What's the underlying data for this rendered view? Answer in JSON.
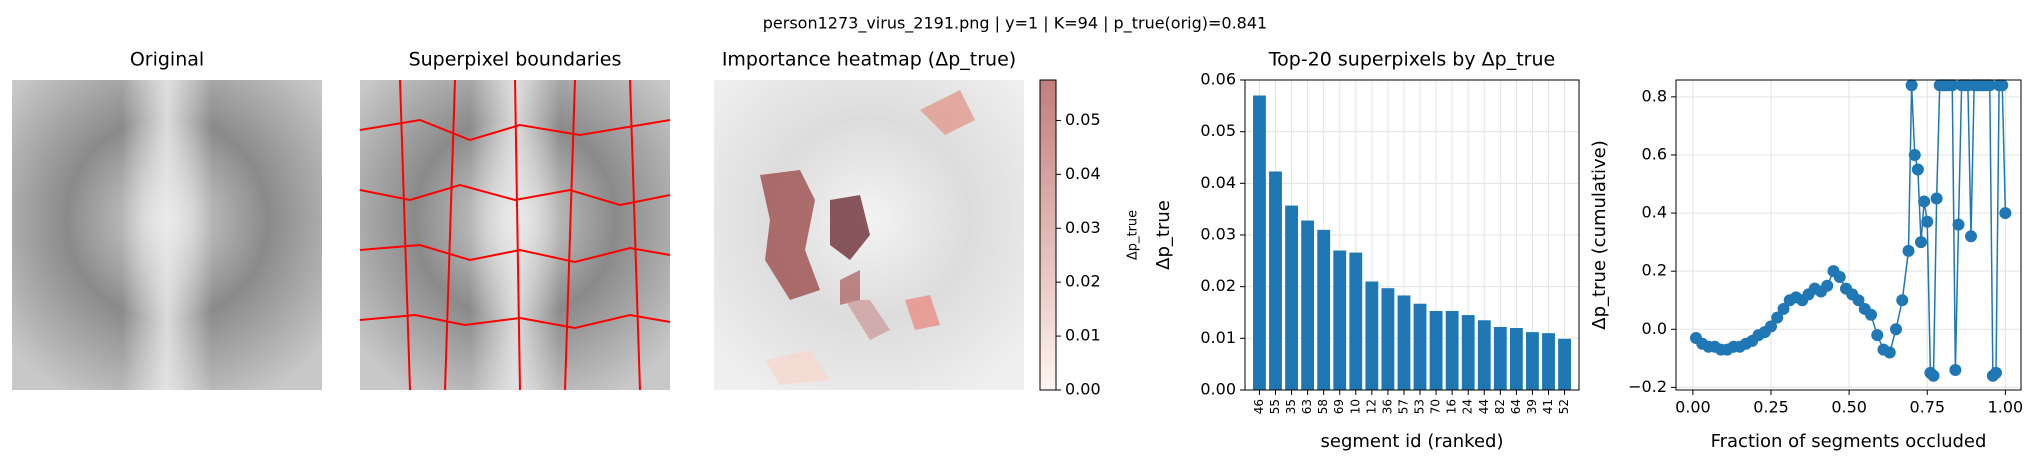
{
  "title": "person1273_virus_2191.png | y=1 | K=94 | p_true(orig)=0.841",
  "chart_data": [
    {
      "type": "image",
      "title": "Original"
    },
    {
      "type": "image",
      "title": "Superpixel boundaries"
    },
    {
      "type": "heatmap",
      "title": "Importance heatmap (Δp_true)",
      "colorbar_label": "Δp_true",
      "cmap": [
        "#fff5f0",
        "#c27d7b"
      ],
      "clim": [
        0,
        0.0575
      ],
      "cticks": [
        {
          "value": 0,
          "label": "0.00"
        },
        {
          "value": 0.01,
          "label": "0.01"
        },
        {
          "value": 0.02,
          "label": "0.02"
        },
        {
          "value": 0.03,
          "label": "0.03"
        },
        {
          "value": 0.04,
          "label": "0.04"
        },
        {
          "value": 0.05,
          "label": "0.05"
        }
      ]
    },
    {
      "type": "bar",
      "title": "Top-20 superpixels by Δp_true",
      "xlabel": "segment id (ranked)",
      "ylabel": "Δp_true",
      "color": "#1f77b4",
      "grid": true,
      "categories": [
        "46",
        "55",
        "35",
        "63",
        "58",
        "69",
        "10",
        "12",
        "36",
        "57",
        "53",
        "70",
        "16",
        "24",
        "44",
        "82",
        "64",
        "39",
        "41",
        "52"
      ],
      "values": [
        0.057,
        0.0423,
        0.0357,
        0.0328,
        0.031,
        0.027,
        0.0266,
        0.021,
        0.0197,
        0.0183,
        0.0167,
        0.0153,
        0.0153,
        0.0145,
        0.0135,
        0.0122,
        0.012,
        0.0112,
        0.011,
        0.0099
      ],
      "ylim": [
        0,
        0.06
      ],
      "yticks": [
        {
          "value": 0,
          "label": "0.00"
        },
        {
          "value": 0.01,
          "label": "0.01"
        },
        {
          "value": 0.02,
          "label": "0.02"
        },
        {
          "value": 0.03,
          "label": "0.03"
        },
        {
          "value": 0.04,
          "label": "0.04"
        },
        {
          "value": 0.05,
          "label": "0.05"
        },
        {
          "value": 0.06,
          "label": "0.06"
        }
      ]
    },
    {
      "type": "line",
      "xlabel": "Fraction of segments occluded",
      "ylabel": "Δp_true (cumulative)",
      "color": "#1f77b4",
      "grid": true,
      "x": [
        0.01,
        0.03,
        0.05,
        0.07,
        0.09,
        0.11,
        0.13,
        0.15,
        0.17,
        0.19,
        0.21,
        0.23,
        0.25,
        0.27,
        0.29,
        0.31,
        0.33,
        0.35,
        0.37,
        0.39,
        0.41,
        0.43,
        0.45,
        0.47,
        0.49,
        0.51,
        0.53,
        0.55,
        0.57,
        0.59,
        0.61,
        0.63,
        0.65,
        0.67,
        0.69,
        0.7,
        0.71,
        0.72,
        0.73,
        0.74,
        0.75,
        0.76,
        0.77,
        0.78,
        0.79,
        0.8,
        0.81,
        0.82,
        0.83,
        0.84,
        0.85,
        0.86,
        0.87,
        0.88,
        0.89,
        0.9,
        0.91,
        0.92,
        0.93,
        0.94,
        0.95,
        0.96,
        0.97,
        0.98,
        0.99,
        1.0
      ],
      "values": [
        -0.03,
        -0.05,
        -0.06,
        -0.06,
        -0.07,
        -0.07,
        -0.06,
        -0.06,
        -0.05,
        -0.04,
        -0.02,
        -0.01,
        0.01,
        0.04,
        0.07,
        0.1,
        0.11,
        0.1,
        0.12,
        0.14,
        0.13,
        0.15,
        0.2,
        0.18,
        0.14,
        0.12,
        0.1,
        0.07,
        0.05,
        -0.02,
        -0.07,
        -0.08,
        0.0,
        0.1,
        0.27,
        0.84,
        0.6,
        0.55,
        0.3,
        0.44,
        0.37,
        -0.15,
        -0.16,
        0.45,
        0.84,
        0.84,
        0.84,
        0.84,
        0.84,
        -0.14,
        0.36,
        0.84,
        0.84,
        0.84,
        0.32,
        0.84,
        0.84,
        0.84,
        0.84,
        0.84,
        0.84,
        -0.16,
        -0.15,
        0.84,
        0.84,
        0.4
      ],
      "xlim": [
        -0.054,
        1.05
      ],
      "ylim": [
        -0.209,
        0.858
      ],
      "xticks": [
        {
          "value": 0,
          "label": "0.00"
        },
        {
          "value": 0.25,
          "label": "0.25"
        },
        {
          "value": 0.5,
          "label": "0.50"
        },
        {
          "value": 0.75,
          "label": "0.75"
        },
        {
          "value": 1,
          "label": "1.00"
        }
      ],
      "yticks": [
        {
          "value": -0.2,
          "label": "−0.2"
        },
        {
          "value": 0,
          "label": "0.0"
        },
        0.2,
        0.4,
        0.6,
        0.8
      ]
    }
  ]
}
